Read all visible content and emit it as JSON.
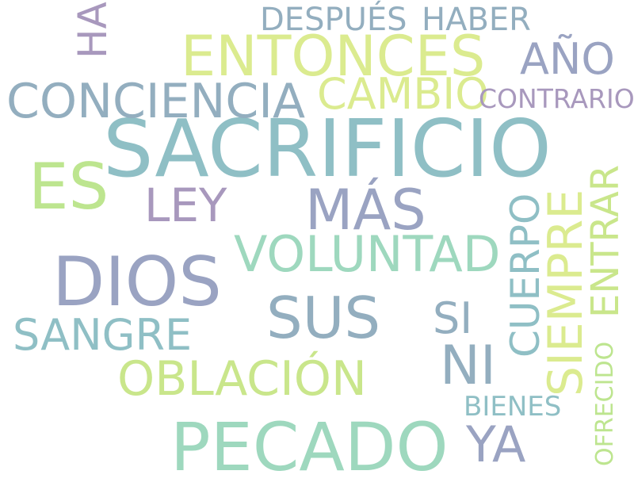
{
  "palette": {
    "teal": "#8fbfc5",
    "steel": "#93aebf",
    "lavender": "#a898bd",
    "periwinkle": "#9aa3c2",
    "yellow_green": "#dbeb8f",
    "light_green": "#bde58f",
    "mint": "#9ed8be",
    "mint_light": "#aadfc2",
    "lime": "#c9e68b"
  },
  "words": [
    {
      "text": "SACRIFICIO",
      "color": "#8fbfc5"
    },
    {
      "text": "PECADO",
      "color": "#9ed8be"
    },
    {
      "text": "DIOS",
      "color": "#9aa3c2"
    },
    {
      "text": "ENTONCES",
      "color": "#dbeb8f"
    },
    {
      "text": "CONCIENCIA",
      "color": "#93aebf"
    },
    {
      "text": "ES",
      "color": "#bde58f"
    },
    {
      "text": "MÁS",
      "color": "#9aa3c2"
    },
    {
      "text": "VOLUNTAD",
      "color": "#9ed8be"
    },
    {
      "text": "SUS",
      "color": "#93aebf"
    },
    {
      "text": "OBLACIÓN",
      "color": "#c9e68b"
    },
    {
      "text": "SANGRE",
      "color": "#8fbfc5"
    },
    {
      "text": "LEY",
      "color": "#a898bd"
    },
    {
      "text": "CAMBIO",
      "color": "#dbeb8f"
    },
    {
      "text": "AÑO",
      "color": "#9aa3c2"
    },
    {
      "text": "DESPUÉS",
      "color": "#93aebf"
    },
    {
      "text": "HABER",
      "color": "#93aebf"
    },
    {
      "text": "HA",
      "color": "#a898bd"
    },
    {
      "text": "CONTRARIO",
      "color": "#a898bd"
    },
    {
      "text": "NI",
      "color": "#93aebf"
    },
    {
      "text": "YA",
      "color": "#9aa3c2"
    },
    {
      "text": "SI",
      "color": "#93aebf"
    },
    {
      "text": "CUERPO",
      "color": "#8fbfc5"
    },
    {
      "text": "SIEMPRE",
      "color": "#dbeb8f"
    },
    {
      "text": "ENTRAR",
      "color": "#c9e68b"
    },
    {
      "text": "BIENES",
      "color": "#8fbfc5"
    },
    {
      "text": "OFRECIDO",
      "color": "#bde58f"
    }
  ]
}
